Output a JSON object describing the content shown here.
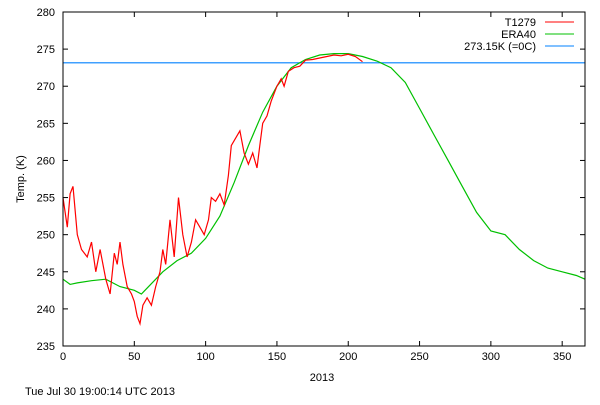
{
  "chart_data": {
    "type": "line",
    "title": "",
    "xlabel": "2013",
    "ylabel": "Temp. (K)",
    "xlim": [
      0,
      366
    ],
    "ylim": [
      235,
      280
    ],
    "xticks": [
      0,
      50,
      100,
      150,
      200,
      250,
      300,
      350
    ],
    "yticks": [
      235,
      240,
      245,
      250,
      255,
      260,
      265,
      270,
      275,
      280
    ],
    "grid": false,
    "legend_placement": "top-right",
    "series": [
      {
        "name": "T1279",
        "color": "#ff0000",
        "x": [
          0,
          3,
          5,
          7,
          10,
          13,
          17,
          20,
          23,
          26,
          30,
          33,
          36,
          38,
          40,
          42,
          45,
          48,
          50,
          52,
          54,
          56,
          59,
          62,
          65,
          68,
          70,
          72,
          75,
          78,
          81,
          84,
          87,
          90,
          93,
          96,
          99,
          102,
          104,
          107,
          110,
          113,
          116,
          118,
          121,
          124,
          127,
          130,
          133,
          136,
          138,
          140,
          143,
          146,
          150,
          153,
          155,
          158,
          162,
          166,
          170,
          175,
          180,
          185,
          190,
          195,
          200,
          205,
          210
        ],
        "y": [
          255,
          251,
          255.5,
          256.5,
          250,
          248,
          247,
          249,
          245,
          248,
          244,
          242,
          247.5,
          246,
          249,
          246,
          243,
          242,
          241,
          239,
          238,
          240.5,
          241.5,
          240.5,
          243,
          245,
          248,
          246,
          252,
          247,
          255,
          250,
          247,
          249,
          252,
          251,
          250,
          252,
          255,
          254.5,
          255.5,
          254,
          258,
          262,
          263,
          264,
          261,
          259.5,
          261,
          259,
          262,
          265,
          266,
          268,
          270,
          271,
          270,
          272,
          272.5,
          272.7,
          273.5,
          273.6,
          273.8,
          274,
          274.2,
          274.1,
          274.3,
          274,
          273.3
        ]
      },
      {
        "name": "ERA40",
        "color": "#00c000",
        "x": [
          0,
          5,
          10,
          20,
          30,
          40,
          50,
          55,
          60,
          70,
          80,
          90,
          100,
          110,
          120,
          130,
          140,
          150,
          160,
          170,
          180,
          190,
          200,
          210,
          220,
          230,
          240,
          250,
          260,
          270,
          280,
          290,
          300,
          310,
          320,
          330,
          340,
          350,
          360,
          366
        ],
        "y": [
          244,
          243.3,
          243.5,
          243.8,
          244,
          243,
          242.5,
          242,
          243,
          245,
          246.5,
          247.5,
          249.5,
          252.5,
          257,
          262,
          266.5,
          270,
          272.5,
          273.6,
          274.2,
          274.4,
          274.4,
          274,
          273.4,
          272.5,
          270.5,
          267,
          263.5,
          260,
          256.5,
          253,
          250.5,
          250,
          248,
          246.5,
          245.5,
          245,
          244.5,
          244
        ]
      },
      {
        "name": "273.15K (=0C)",
        "color": "#0080ff",
        "x": [
          0,
          366
        ],
        "y": [
          273.15,
          273.15
        ]
      }
    ]
  },
  "footer": {
    "timestamp": "Tue Jul 30 19:00:14 UTC 2013"
  }
}
